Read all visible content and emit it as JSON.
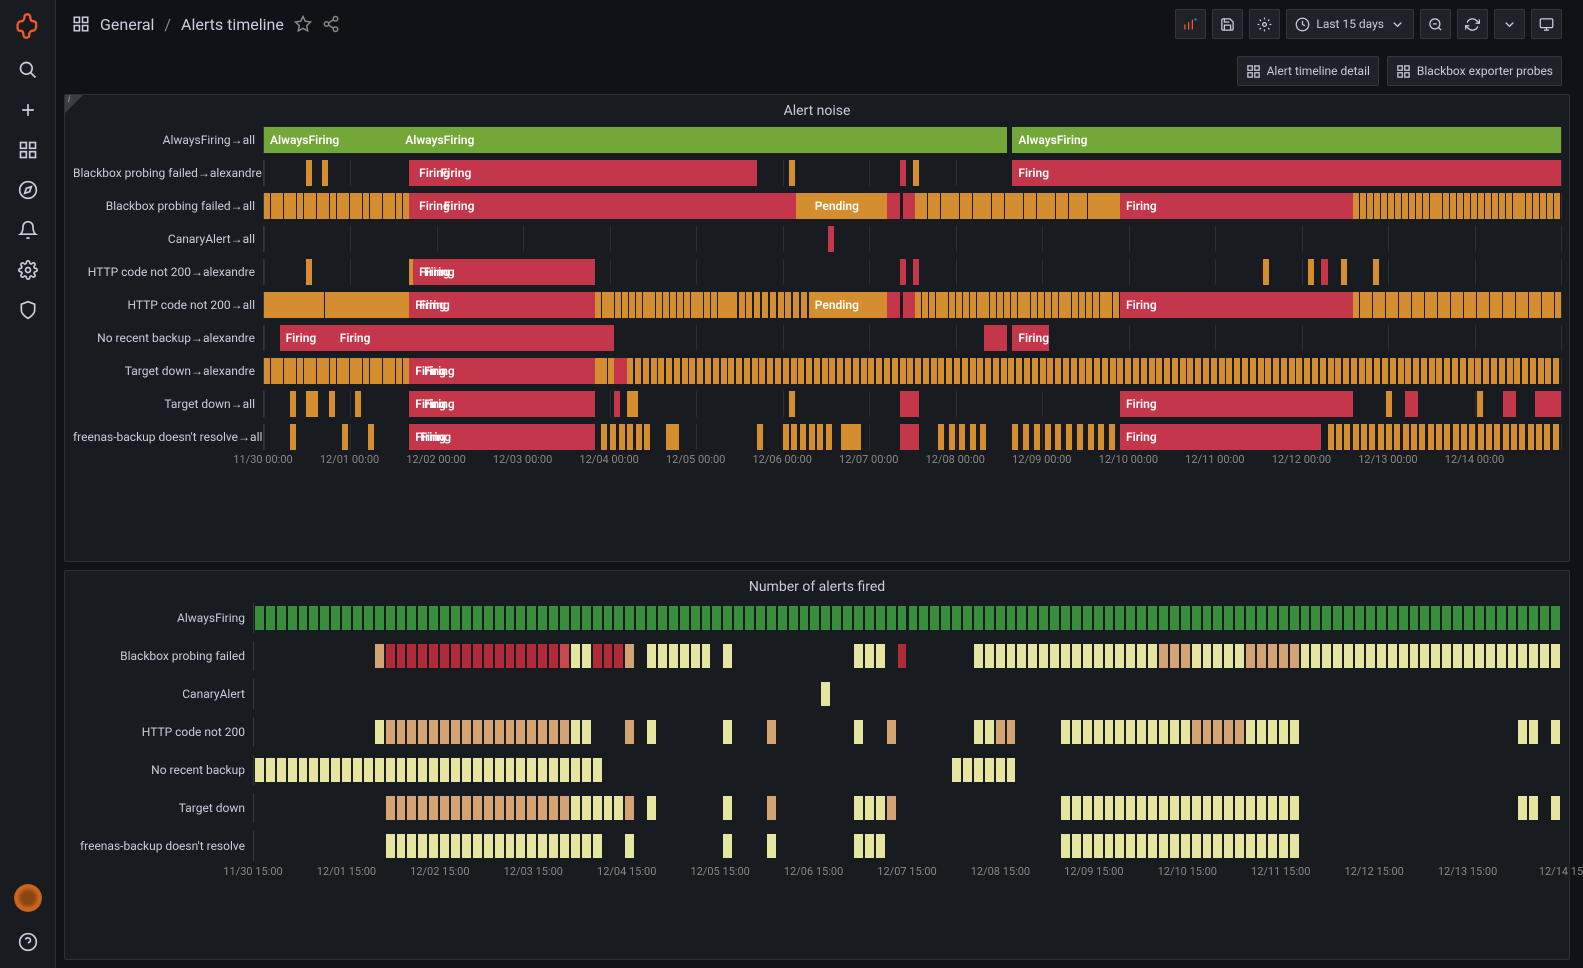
{
  "folder": "General",
  "title": "Alerts timeline",
  "time_range": "Last 15 days",
  "header_buttons": {
    "detail": "Alert timeline detail",
    "probes": "Blackbox exporter probes"
  },
  "colors": {
    "green": "#73a839",
    "red": "#c4374a",
    "orange": "#d58e2f",
    "heat_green": "#388e3c",
    "heat_yellow": "#e5e5a0",
    "heat_tan": "#d4a373",
    "heat_dred": "#b02a37",
    "heat_red": "#c9474e"
  },
  "labels": {
    "firing": "Firing",
    "pending": "Pending",
    "always": "AlwaysFiring"
  },
  "panel1": {
    "title": "Alert noise",
    "axis": [
      "11/30 00:00",
      "12/01 00:00",
      "12/02 00:00",
      "12/03 00:00",
      "12/04 00:00",
      "12/05 00:00",
      "12/06 00:00",
      "12/07 00:00",
      "12/08 00:00",
      "12/09 00:00",
      "12/10 00:00",
      "12/11 00:00",
      "12/12 00:00",
      "12/13 00:00",
      "12/14 00:00"
    ],
    "rows": [
      {
        "label": "AlwaysFiring→all",
        "segs": [
          {
            "s": 0,
            "e": 57.3,
            "c": "green",
            "t": "AlwaysFiring",
            "t2": "AlwaysFiring",
            "t2p": 19
          },
          {
            "s": 57.7,
            "e": 100,
            "c": "green",
            "t": "AlwaysFiring"
          }
        ]
      },
      {
        "label": "Blackbox probing failed→alexandre",
        "segs": [
          {
            "s": 3.2,
            "e": 3.5,
            "c": "orange"
          },
          {
            "s": 4.5,
            "e": 4.8,
            "c": "orange"
          },
          {
            "s": 11.2,
            "e": 11.5,
            "c": "red"
          },
          {
            "s": 11.5,
            "e": 38,
            "c": "red",
            "t": "Firing",
            "t2": "Firing",
            "t2p": 8
          },
          {
            "s": 40.5,
            "e": 40.8,
            "c": "orange"
          },
          {
            "s": 49,
            "e": 49.5,
            "c": "red"
          },
          {
            "s": 50,
            "e": 50.3,
            "c": "orange"
          },
          {
            "s": 57.7,
            "e": 100,
            "c": "red",
            "t": "Firing"
          }
        ]
      },
      {
        "label": "Blackbox probing failed→all",
        "segs": [
          {
            "s": 0,
            "e": 11.2,
            "c": "orange",
            "stripes": 22
          },
          {
            "s": 11.2,
            "e": 11.5,
            "c": "red"
          },
          {
            "s": 11.5,
            "e": 41,
            "c": "red",
            "t": "Firing",
            "t2": "Firing",
            "t2p": 8
          },
          {
            "s": 41,
            "e": 42,
            "c": "orange",
            "stripes": 3
          },
          {
            "s": 42,
            "e": 48,
            "c": "orange",
            "t": "Pending"
          },
          {
            "s": 48,
            "e": 49,
            "c": "red"
          },
          {
            "s": 49.3,
            "e": 50.2,
            "c": "red"
          },
          {
            "s": 50.2,
            "e": 64,
            "c": "orange",
            "stripes": 28
          },
          {
            "s": 64,
            "e": 66,
            "c": "orange"
          },
          {
            "s": 66,
            "e": 84,
            "c": "red",
            "t": "Firing"
          },
          {
            "s": 84,
            "e": 100,
            "c": "orange",
            "stripes": 30
          }
        ]
      },
      {
        "label": "CanaryAlert→all",
        "segs": [
          {
            "s": 43.5,
            "e": 43.8,
            "c": "red"
          }
        ]
      },
      {
        "label": "HTTP code not 200→alexandre",
        "segs": [
          {
            "s": 3.2,
            "e": 3.5,
            "c": "orange"
          },
          {
            "s": 11.2,
            "e": 11.5,
            "c": "orange"
          },
          {
            "s": 11.5,
            "e": 25.5,
            "c": "red",
            "t": "Firing",
            "t2": "Firing",
            "t2p": 6
          },
          {
            "s": 49,
            "e": 49.5,
            "c": "red"
          },
          {
            "s": 50,
            "e": 50.5,
            "c": "red"
          },
          {
            "s": 77,
            "e": 77.3,
            "c": "orange"
          },
          {
            "s": 80.5,
            "e": 80.8,
            "c": "orange"
          },
          {
            "s": 81.5,
            "e": 82,
            "c": "red"
          },
          {
            "s": 83,
            "e": 83.3,
            "c": "orange"
          },
          {
            "s": 85.5,
            "e": 85.8,
            "c": "orange"
          }
        ]
      },
      {
        "label": "HTTP code not 200→all",
        "segs": [
          {
            "s": 0,
            "e": 11.2,
            "c": "orange",
            "stripes": 24
          },
          {
            "s": 11.2,
            "e": 24,
            "c": "red",
            "t": "Firing",
            "t2": "Firing",
            "t2p": 6
          },
          {
            "s": 24,
            "e": 25.5,
            "c": "red"
          },
          {
            "s": 25.5,
            "e": 35,
            "c": "orange",
            "stripes": 18
          },
          {
            "s": 35,
            "e": 36,
            "c": "orange"
          },
          {
            "s": 36,
            "e": 42,
            "c": "orange",
            "stripes": 10
          },
          {
            "s": 42,
            "e": 48,
            "c": "orange",
            "t": "Pending"
          },
          {
            "s": 48,
            "e": 49,
            "c": "red"
          },
          {
            "s": 49.3,
            "e": 50.2,
            "c": "red"
          },
          {
            "s": 50.2,
            "e": 66,
            "c": "orange",
            "stripes": 30
          },
          {
            "s": 66,
            "e": 84,
            "c": "red",
            "t": "Firing"
          },
          {
            "s": 84,
            "e": 100,
            "c": "orange",
            "stripes": 32
          }
        ]
      },
      {
        "label": "No recent backup→alexandre",
        "segs": [
          {
            "s": 1.2,
            "e": 27,
            "c": "red",
            "t": "Firing",
            "t2": "Firing",
            "t2p": 18
          },
          {
            "s": 55.5,
            "e": 57.3,
            "c": "red"
          },
          {
            "s": 57.7,
            "e": 60.5,
            "c": "red",
            "t": "Firing"
          }
        ]
      },
      {
        "label": "Target down→alexandre",
        "segs": [
          {
            "s": 0,
            "e": 11.2,
            "c": "orange",
            "stripes": 22
          },
          {
            "s": 11.2,
            "e": 25.5,
            "c": "red",
            "t": "Firing",
            "t2": "Firing",
            "t2p": 8
          },
          {
            "s": 25.5,
            "e": 27,
            "c": "orange",
            "stripes": 3
          },
          {
            "s": 27,
            "e": 28,
            "c": "red"
          },
          {
            "s": 28,
            "e": 100,
            "c": "orange",
            "stripes": 120
          }
        ]
      },
      {
        "label": "Target down→all",
        "segs": [
          {
            "s": 2,
            "e": 2.3,
            "c": "orange"
          },
          {
            "s": 3.2,
            "e": 4,
            "c": "orange",
            "stripes": 3
          },
          {
            "s": 5,
            "e": 5.3,
            "c": "orange"
          },
          {
            "s": 7,
            "e": 7.3,
            "c": "orange"
          },
          {
            "s": 11.2,
            "e": 25.5,
            "c": "red",
            "t": "Firing",
            "t2": "Firing",
            "t2p": 8
          },
          {
            "s": 27,
            "e": 27.3,
            "c": "red"
          },
          {
            "s": 28,
            "e": 28.8,
            "c": "orange"
          },
          {
            "s": 40.5,
            "e": 40.8,
            "c": "orange"
          },
          {
            "s": 49,
            "e": 50.5,
            "c": "red"
          },
          {
            "s": 66,
            "e": 84,
            "c": "red",
            "t": "Firing"
          },
          {
            "s": 86.5,
            "e": 86.8,
            "c": "orange"
          },
          {
            "s": 88,
            "e": 89,
            "c": "red"
          },
          {
            "s": 93.5,
            "e": 93.8,
            "c": "orange"
          },
          {
            "s": 95.5,
            "e": 96.5,
            "c": "red"
          },
          {
            "s": 98,
            "e": 100,
            "c": "red"
          }
        ]
      },
      {
        "label": "freenas-backup doesn't resolve→all",
        "segs": [
          {
            "s": 2,
            "e": 2.3,
            "c": "orange"
          },
          {
            "s": 6,
            "e": 6.3,
            "c": "orange"
          },
          {
            "s": 8,
            "e": 8.3,
            "c": "orange"
          },
          {
            "s": 11.2,
            "e": 25.5,
            "c": "red",
            "t": "Firing",
            "t2": "Firing",
            "t2p": 6
          },
          {
            "s": 26,
            "e": 30,
            "c": "orange",
            "stripes": 6
          },
          {
            "s": 31,
            "e": 32,
            "c": "orange"
          },
          {
            "s": 38,
            "e": 38.3,
            "c": "orange"
          },
          {
            "s": 40,
            "e": 44,
            "c": "orange",
            "stripes": 6
          },
          {
            "s": 44.5,
            "e": 46,
            "c": "orange"
          },
          {
            "s": 49,
            "e": 50.5,
            "c": "red"
          },
          {
            "s": 52,
            "e": 56,
            "c": "orange",
            "stripes": 5
          },
          {
            "s": 57.7,
            "e": 66,
            "c": "orange",
            "stripes": 10
          },
          {
            "s": 66,
            "e": 81.5,
            "c": "red",
            "t": "Firing"
          },
          {
            "s": 82,
            "e": 100,
            "c": "orange",
            "stripes": 28
          }
        ]
      }
    ]
  },
  "panel2": {
    "title": "Number of alerts fired",
    "axis": [
      "11/30 15:00",
      "12/01 15:00",
      "12/02 15:00",
      "12/03 15:00",
      "12/04 15:00",
      "12/05 15:00",
      "12/06 15:00",
      "12/07 15:00",
      "12/08 15:00",
      "12/09 15:00",
      "12/10 15:00",
      "12/11 15:00",
      "12/12 15:00",
      "12/13 15:00",
      "12/14 15"
    ],
    "cells_per_row": 120,
    "rows": [
      {
        "label": "AlwaysFiring",
        "cells": "full_green"
      },
      {
        "label": "Blackbox probing failed",
        "segs": [
          {
            "s": 9,
            "e": 10,
            "c": "heat_tan"
          },
          {
            "s": 10,
            "e": 23,
            "c": "heat_dred"
          },
          {
            "s": 23,
            "e": 24,
            "c": "heat_red"
          },
          {
            "s": 24,
            "e": 26,
            "c": "heat_yellow"
          },
          {
            "s": 26,
            "e": 28,
            "c": "heat_dred"
          },
          {
            "s": 28,
            "e": 29,
            "c": "heat_tan"
          },
          {
            "s": 30,
            "e": 35,
            "c": "heat_yellow"
          },
          {
            "s": 36,
            "e": 37,
            "c": "heat_yellow"
          },
          {
            "s": 46,
            "e": 48,
            "c": "heat_yellow"
          },
          {
            "s": 49,
            "e": 50,
            "c": "heat_dred"
          },
          {
            "s": 55,
            "e": 58,
            "c": "heat_yellow"
          },
          {
            "s": 58,
            "e": 69,
            "c": "heat_yellow"
          },
          {
            "s": 69,
            "e": 72,
            "c": "heat_tan"
          },
          {
            "s": 72,
            "e": 76,
            "c": "heat_yellow"
          },
          {
            "s": 76,
            "e": 80,
            "c": "heat_tan"
          },
          {
            "s": 80,
            "e": 100,
            "c": "heat_yellow"
          }
        ]
      },
      {
        "label": "CanaryAlert",
        "segs": [
          {
            "s": 43.5,
            "e": 44.5,
            "c": "heat_yellow"
          }
        ]
      },
      {
        "label": "HTTP code not 200",
        "segs": [
          {
            "s": 9,
            "e": 10,
            "c": "heat_yellow"
          },
          {
            "s": 10,
            "e": 24,
            "c": "heat_tan"
          },
          {
            "s": 24,
            "e": 26,
            "c": "heat_yellow"
          },
          {
            "s": 28,
            "e": 29,
            "c": "heat_tan"
          },
          {
            "s": 30,
            "e": 31,
            "c": "heat_yellow"
          },
          {
            "s": 36,
            "e": 37,
            "c": "heat_yellow"
          },
          {
            "s": 39,
            "e": 40,
            "c": "heat_tan"
          },
          {
            "s": 46,
            "e": 47,
            "c": "heat_yellow"
          },
          {
            "s": 48,
            "e": 49,
            "c": "heat_tan"
          },
          {
            "s": 55,
            "e": 57,
            "c": "heat_yellow"
          },
          {
            "s": 57,
            "e": 58,
            "c": "heat_tan"
          },
          {
            "s": 62,
            "e": 72,
            "c": "heat_yellow"
          },
          {
            "s": 72,
            "e": 76,
            "c": "heat_tan"
          },
          {
            "s": 76,
            "e": 80,
            "c": "heat_yellow"
          },
          {
            "s": 97,
            "e": 98,
            "c": "heat_yellow"
          },
          {
            "s": 99,
            "e": 100,
            "c": "heat_yellow"
          }
        ]
      },
      {
        "label": "No recent backup",
        "segs": [
          {
            "s": 0,
            "e": 27,
            "c": "heat_yellow"
          },
          {
            "s": 53,
            "e": 58,
            "c": "heat_yellow"
          }
        ]
      },
      {
        "label": "Target down",
        "segs": [
          {
            "s": 10,
            "e": 24,
            "c": "heat_tan"
          },
          {
            "s": 24,
            "e": 28,
            "c": "heat_yellow"
          },
          {
            "s": 28,
            "e": 29,
            "c": "heat_tan"
          },
          {
            "s": 30,
            "e": 31,
            "c": "heat_yellow"
          },
          {
            "s": 36,
            "e": 37,
            "c": "heat_yellow"
          },
          {
            "s": 39,
            "e": 40,
            "c": "heat_tan"
          },
          {
            "s": 46,
            "e": 48,
            "c": "heat_yellow"
          },
          {
            "s": 48,
            "e": 49,
            "c": "heat_tan"
          },
          {
            "s": 62,
            "e": 80,
            "c": "heat_yellow"
          },
          {
            "s": 97,
            "e": 98,
            "c": "heat_yellow"
          },
          {
            "s": 99,
            "e": 100,
            "c": "heat_yellow"
          }
        ]
      },
      {
        "label": "freenas-backup doesn't resolve",
        "segs": [
          {
            "s": 10,
            "e": 27,
            "c": "heat_yellow"
          },
          {
            "s": 28,
            "e": 29,
            "c": "heat_yellow"
          },
          {
            "s": 36,
            "e": 37,
            "c": "heat_yellow"
          },
          {
            "s": 39,
            "e": 40,
            "c": "heat_yellow"
          },
          {
            "s": 46,
            "e": 48,
            "c": "heat_yellow"
          },
          {
            "s": 62,
            "e": 80,
            "c": "heat_yellow"
          }
        ]
      }
    ]
  }
}
